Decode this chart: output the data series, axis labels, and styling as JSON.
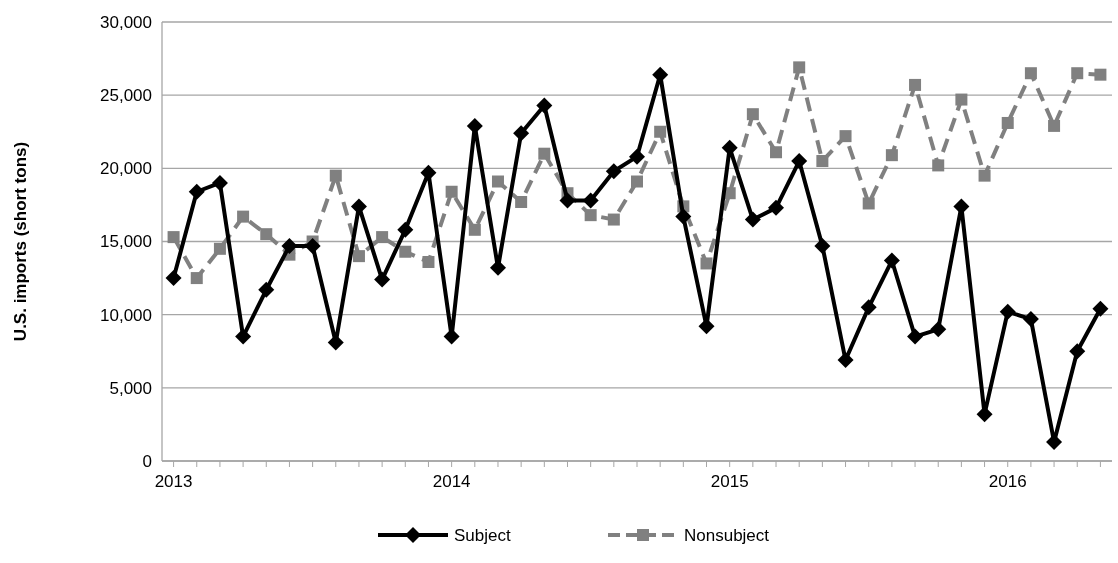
{
  "chart_data": {
    "type": "line",
    "ylabel": "U.S. imports (short tons)",
    "categories": [
      "2013",
      null,
      null,
      null,
      null,
      null,
      null,
      null,
      null,
      null,
      null,
      null,
      "2014",
      null,
      null,
      null,
      null,
      null,
      null,
      null,
      null,
      null,
      null,
      null,
      "2015",
      null,
      null,
      null,
      null,
      null,
      null,
      null,
      null,
      null,
      null,
      null,
      "2016",
      null,
      null,
      null,
      null
    ],
    "ylim": [
      0,
      30000
    ],
    "yticks": [
      0,
      {
        "value": 5000,
        "label": "5,000"
      },
      {
        "value": 10000,
        "label": "10,000"
      },
      {
        "value": 15000,
        "label": "15,000"
      },
      {
        "value": 20000,
        "label": "20,000"
      },
      {
        "value": 25000,
        "label": "25,000"
      },
      {
        "value": 30000,
        "label": "30,000"
      }
    ],
    "grid": "y",
    "legend": "bottom",
    "series": [
      {
        "name": "Subject",
        "color": "#000000",
        "marker": "diamond",
        "line_style": "solid",
        "values": [
          12500,
          18400,
          19000,
          8500,
          11700,
          14700,
          14700,
          8100,
          17400,
          12400,
          15800,
          19700,
          8500,
          22900,
          13200,
          22400,
          24300,
          17800,
          17800,
          19800,
          20800,
          26400,
          16700,
          9200,
          21400,
          16500,
          17300,
          20500,
          14700,
          6900,
          10500,
          13700,
          8500,
          9000,
          17400,
          3200,
          10200,
          9700,
          1300,
          7500,
          10400
        ]
      },
      {
        "name": "Nonsubject",
        "color": "#808080",
        "marker": "square",
        "line_style": "dashed",
        "values": [
          15300,
          12500,
          14500,
          16700,
          15500,
          14100,
          15000,
          19500,
          14000,
          15300,
          14300,
          13600,
          18400,
          15800,
          19100,
          17700,
          21000,
          18300,
          16800,
          16500,
          19100,
          22500,
          17400,
          13500,
          18300,
          23700,
          21100,
          26900,
          20500,
          22200,
          17600,
          20900,
          25700,
          20200,
          24700,
          19500,
          23100,
          26500,
          22900,
          26500,
          26400
        ]
      }
    ]
  }
}
